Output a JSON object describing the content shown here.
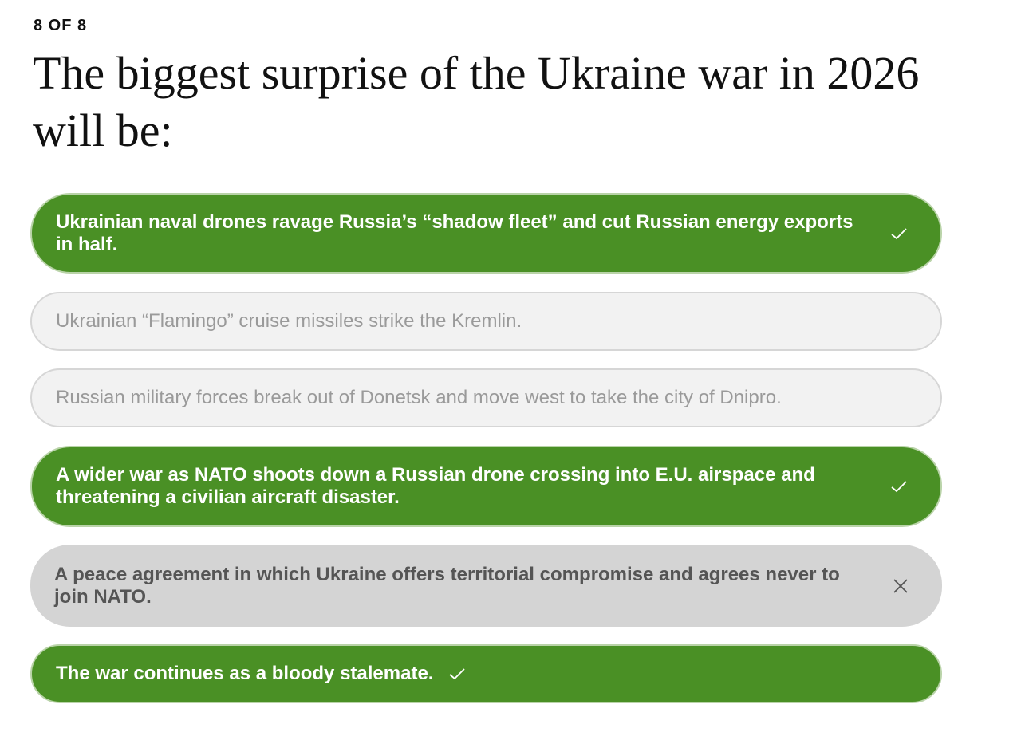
{
  "quiz": {
    "counter": "8 OF 8",
    "question": "The biggest surprise of the Ukraine war in 2026 will be:",
    "colors": {
      "correct": "#4a9025",
      "wrong": "#d4d4d4",
      "neutral": "#f2f2f2"
    },
    "options": [
      {
        "text": "Ukrainian naval drones ravage Russia’s “shadow fleet” and cut Russian energy exports in half.",
        "state": "correct",
        "icon": "check-icon"
      },
      {
        "text": "Ukrainian “Flamingo” cruise missiles strike the Kremlin.",
        "state": "unselected"
      },
      {
        "text": "Russian military forces break out of Donetsk and move west to take the city of Dnipro.",
        "state": "unselected"
      },
      {
        "text": "A wider war as NATO shoots down a Russian drone crossing into E.U. airspace and threatening a civilian aircraft disaster.",
        "state": "correct",
        "icon": "check-icon"
      },
      {
        "text": "A peace agreement in which Ukraine offers territorial compromise and agrees never to join NATO.",
        "state": "wrong",
        "icon": "x-icon"
      },
      {
        "text": "The war continues as a bloody stalemate.",
        "state": "correct",
        "icon": "check-icon"
      }
    ]
  }
}
